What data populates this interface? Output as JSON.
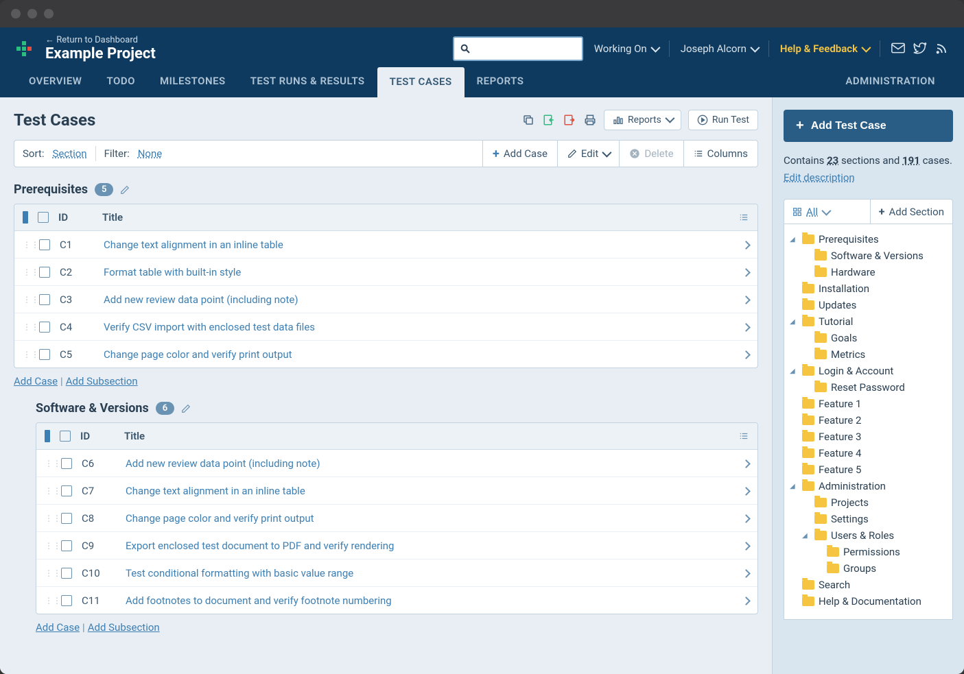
{
  "header": {
    "return_link": "← Return to Dashboard",
    "project_title": "Example Project",
    "working_on": "Working On",
    "user_name": "Joseph Alcorn",
    "help_label": "Help & Feedback"
  },
  "nav": {
    "overview": "OVERVIEW",
    "todo": "TODO",
    "milestones": "MILESTONES",
    "testruns": "TEST RUNS & RESULTS",
    "testcases": "TEST CASES",
    "reports": "REPORTS",
    "admin": "ADMINISTRATION"
  },
  "page": {
    "title": "Test Cases",
    "reports_btn": "Reports",
    "runtest_btn": "Run Test"
  },
  "toolbar": {
    "sort_label": "Sort:",
    "sort_value": "Section",
    "filter_label": "Filter:",
    "filter_value": "None",
    "add_case": "Add Case",
    "edit": "Edit",
    "delete": "Delete",
    "columns": "Columns"
  },
  "sections": [
    {
      "title": "Prerequisites",
      "count": "5",
      "col_id": "ID",
      "col_title": "Title",
      "rows": [
        {
          "id": "C1",
          "title": "Change text alignment in an inline table"
        },
        {
          "id": "C2",
          "title": "Format table with built-in style"
        },
        {
          "id": "C3",
          "title": "Add new review data point (including note)"
        },
        {
          "id": "C4",
          "title": "Verify CSV import with enclosed test data files"
        },
        {
          "id": "C5",
          "title": "Change page color and verify print output"
        }
      ]
    },
    {
      "title": "Software & Versions",
      "count": "6",
      "col_id": "ID",
      "col_title": "Title",
      "rows": [
        {
          "id": "C6",
          "title": "Add new review data point (including note)"
        },
        {
          "id": "C7",
          "title": "Change text alignment in an inline table"
        },
        {
          "id": "C8",
          "title": "Change page color and verify print output"
        },
        {
          "id": "C9",
          "title": "Export enclosed test document to PDF and verify rendering"
        },
        {
          "id": "C10",
          "title": "Test conditional formatting with basic value range"
        },
        {
          "id": "C11",
          "title": "Add footnotes to document and verify footnote numbering"
        }
      ]
    }
  ],
  "addlinks": {
    "case": "Add Case",
    "sub": "Add Subsection"
  },
  "sidebar": {
    "add_btn": "Add Test Case",
    "summary_pre": "Contains ",
    "sections_n": "23",
    "summary_mid": " sections and ",
    "cases_n": "191",
    "summary_post": " cases.",
    "edit_desc": "Edit description",
    "all": "All",
    "add_section": "Add Section"
  },
  "tree": [
    {
      "label": "Prerequisites",
      "exp": true,
      "lvl": 0
    },
    {
      "label": "Software & Versions",
      "lvl": 1
    },
    {
      "label": "Hardware",
      "lvl": 1
    },
    {
      "label": "Installation",
      "lvl": 0
    },
    {
      "label": "Updates",
      "lvl": 0
    },
    {
      "label": "Tutorial",
      "exp": true,
      "lvl": 0
    },
    {
      "label": "Goals",
      "lvl": 1
    },
    {
      "label": "Metrics",
      "lvl": 1
    },
    {
      "label": "Login & Account",
      "exp": true,
      "lvl": 0
    },
    {
      "label": "Reset Password",
      "lvl": 1
    },
    {
      "label": "Feature 1",
      "lvl": 0
    },
    {
      "label": "Feature 2",
      "lvl": 0
    },
    {
      "label": "Feature 3",
      "lvl": 0
    },
    {
      "label": "Feature 4",
      "lvl": 0
    },
    {
      "label": "Feature 5",
      "lvl": 0
    },
    {
      "label": "Administration",
      "exp": true,
      "lvl": 0
    },
    {
      "label": "Projects",
      "lvl": 1
    },
    {
      "label": "Settings",
      "lvl": 1
    },
    {
      "label": "Users & Roles",
      "exp": true,
      "lvl": 1
    },
    {
      "label": "Permissions",
      "lvl": 2
    },
    {
      "label": "Groups",
      "lvl": 2
    },
    {
      "label": "Search",
      "lvl": 0
    },
    {
      "label": "Help & Documentation",
      "lvl": 0
    }
  ],
  "colors": {
    "header_bg": "#0f3a5f",
    "accent_blue": "#3d7fb3",
    "folder": "#f5c542",
    "sidebar_bg": "#dae6ef",
    "content_bg": "#e8eef3"
  }
}
